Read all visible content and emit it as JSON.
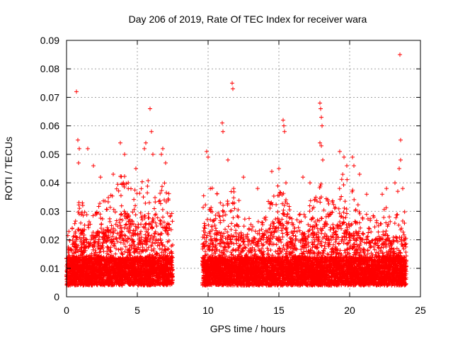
{
  "chart_data": {
    "type": "scatter",
    "title": "Day 206 of 2019, Rate Of TEC Index for receiver wara",
    "xlabel": "GPS time / hours",
    "ylabel": "ROTI / TECUs",
    "xlim": [
      0,
      25
    ],
    "ylim": [
      0,
      0.09
    ],
    "x_ticks": [
      "0",
      "5",
      "10",
      "15",
      "20",
      "25"
    ],
    "y_ticks": [
      "0",
      "0.01",
      "0.02",
      "0.03",
      "0.04",
      "0.05",
      "0.06",
      "0.07",
      "0.08",
      "0.09"
    ],
    "grid": true,
    "marker": "+",
    "color": "#ff0000",
    "data_segments": [
      {
        "x_start": 0.0,
        "x_end": 7.5
      },
      {
        "x_start": 9.6,
        "x_end": 24.0
      }
    ],
    "envelope": [
      [
        0.0,
        0.024
      ],
      [
        0.5,
        0.03
      ],
      [
        1.0,
        0.035
      ],
      [
        1.5,
        0.028
      ],
      [
        2.0,
        0.03
      ],
      [
        2.5,
        0.034
      ],
      [
        3.0,
        0.035
      ],
      [
        3.5,
        0.038
      ],
      [
        4.0,
        0.045
      ],
      [
        4.5,
        0.04
      ],
      [
        5.0,
        0.037
      ],
      [
        5.5,
        0.042
      ],
      [
        6.0,
        0.04
      ],
      [
        6.5,
        0.038
      ],
      [
        7.0,
        0.042
      ],
      [
        7.5,
        0.03
      ],
      [
        9.6,
        0.035
      ],
      [
        10.0,
        0.04
      ],
      [
        10.5,
        0.038
      ],
      [
        11.0,
        0.032
      ],
      [
        11.5,
        0.036
      ],
      [
        12.0,
        0.04
      ],
      [
        12.5,
        0.03
      ],
      [
        13.0,
        0.027
      ],
      [
        13.5,
        0.03
      ],
      [
        14.0,
        0.032
      ],
      [
        14.5,
        0.035
      ],
      [
        15.0,
        0.04
      ],
      [
        15.5,
        0.035
      ],
      [
        16.0,
        0.03
      ],
      [
        16.5,
        0.03
      ],
      [
        17.0,
        0.032
      ],
      [
        17.5,
        0.036
      ],
      [
        18.0,
        0.042
      ],
      [
        18.5,
        0.035
      ],
      [
        19.0,
        0.033
      ],
      [
        19.5,
        0.045
      ],
      [
        20.0,
        0.04
      ],
      [
        20.5,
        0.038
      ],
      [
        21.0,
        0.03
      ],
      [
        21.5,
        0.028
      ],
      [
        22.0,
        0.03
      ],
      [
        22.5,
        0.032
      ],
      [
        23.0,
        0.028
      ],
      [
        23.5,
        0.03
      ],
      [
        24.0,
        0.032
      ]
    ],
    "outliers": [
      [
        0.7,
        0.072
      ],
      [
        0.8,
        0.055
      ],
      [
        0.9,
        0.052
      ],
      [
        0.85,
        0.047
      ],
      [
        1.5,
        0.052
      ],
      [
        1.9,
        0.046
      ],
      [
        2.4,
        0.042
      ],
      [
        3.3,
        0.043
      ],
      [
        3.8,
        0.054
      ],
      [
        4.1,
        0.05
      ],
      [
        4.9,
        0.045
      ],
      [
        5.5,
        0.052
      ],
      [
        5.6,
        0.054
      ],
      [
        5.9,
        0.066
      ],
      [
        6.0,
        0.058
      ],
      [
        6.1,
        0.05
      ],
      [
        6.7,
        0.05
      ],
      [
        6.8,
        0.052
      ],
      [
        7.0,
        0.047
      ],
      [
        9.9,
        0.051
      ],
      [
        10.0,
        0.049
      ],
      [
        11.0,
        0.061
      ],
      [
        11.05,
        0.058
      ],
      [
        11.7,
        0.075
      ],
      [
        11.75,
        0.073
      ],
      [
        11.4,
        0.048
      ],
      [
        12.5,
        0.042
      ],
      [
        13.5,
        0.038
      ],
      [
        14.5,
        0.044
      ],
      [
        15.0,
        0.045
      ],
      [
        15.3,
        0.062
      ],
      [
        15.35,
        0.06
      ],
      [
        15.4,
        0.058
      ],
      [
        15.5,
        0.04
      ],
      [
        16.7,
        0.042
      ],
      [
        17.2,
        0.04
      ],
      [
        17.9,
        0.068
      ],
      [
        17.95,
        0.066
      ],
      [
        18.0,
        0.063
      ],
      [
        18.05,
        0.06
      ],
      [
        17.9,
        0.054
      ],
      [
        18.0,
        0.053
      ],
      [
        18.1,
        0.048
      ],
      [
        19.3,
        0.051
      ],
      [
        19.6,
        0.049
      ],
      [
        19.8,
        0.046
      ],
      [
        20.2,
        0.049
      ],
      [
        20.3,
        0.046
      ],
      [
        20.7,
        0.043
      ],
      [
        21.2,
        0.036
      ],
      [
        22.3,
        0.036
      ],
      [
        22.6,
        0.038
      ],
      [
        23.2,
        0.04
      ],
      [
        23.4,
        0.037
      ],
      [
        23.55,
        0.085
      ],
      [
        23.6,
        0.055
      ],
      [
        23.6,
        0.048
      ],
      [
        23.5,
        0.045
      ],
      [
        23.75,
        0.038
      ]
    ]
  }
}
